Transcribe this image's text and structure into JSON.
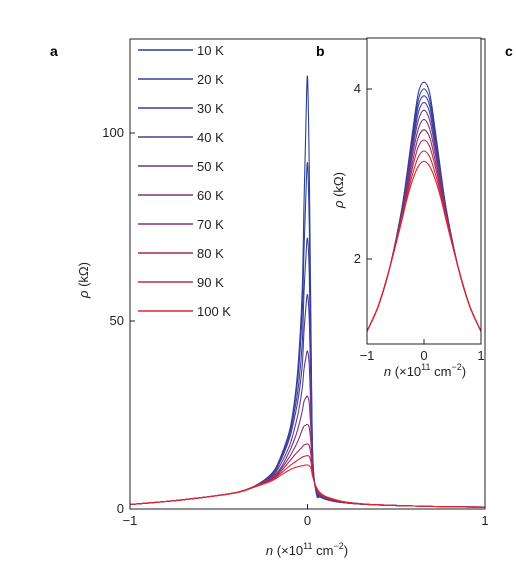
{
  "panels": {
    "a": "a",
    "b": "b",
    "c": "c"
  },
  "chart_data": [
    {
      "panel": "a",
      "type": "line",
      "title": "",
      "xlabel": "n (×10¹¹ cm⁻²)",
      "xlabel_parts": {
        "var": "n",
        "open": " (×10",
        "exp1": "11",
        "mid": " cm",
        "exp2": "−2",
        "close": ")"
      },
      "ylabel": "ρ (kΩ)",
      "ylabel_parts": {
        "var": "ρ",
        "rest": " (kΩ)"
      },
      "xlim": [
        -1,
        1.0
      ],
      "ylim": [
        0,
        125
      ],
      "xticks": [
        -1,
        0,
        1
      ],
      "xtick_labels": [
        "−1",
        "0",
        "1"
      ],
      "yticks": [
        0,
        50,
        100
      ],
      "ytick_labels": [
        "0",
        "50",
        "100"
      ],
      "grid": false,
      "legend_position": "top-left",
      "x": [
        -1.0,
        -0.8,
        -0.6,
        -0.4,
        -0.3,
        -0.2,
        -0.15,
        -0.1,
        -0.07,
        -0.05,
        -0.03,
        -0.02,
        -0.01,
        0.0,
        0.01,
        0.02,
        0.03,
        0.05,
        0.07,
        0.1,
        0.15,
        0.2,
        0.3,
        0.4,
        0.6,
        0.8,
        1.0
      ],
      "series": [
        {
          "name": "10 K",
          "color": "#2b3f96",
          "values": [
            1.2,
            2.0,
            3.0,
            4.4,
            6.0,
            9.5,
            14.0,
            21.0,
            30.0,
            40.0,
            58.0,
            80.0,
            100.0,
            115.0,
            90.0,
            45.0,
            14.0,
            4.0,
            3.2,
            2.6,
            2.0,
            1.7,
            1.3,
            1.1,
            0.8,
            0.6,
            0.5
          ]
        },
        {
          "name": "20 K",
          "color": "#33409a",
          "values": [
            1.2,
            2.0,
            3.0,
            4.4,
            6.0,
            9.5,
            14.0,
            21.0,
            29.0,
            37.0,
            52.0,
            68.0,
            82.0,
            92.0,
            75.0,
            40.0,
            13.0,
            4.2,
            3.3,
            2.7,
            2.1,
            1.7,
            1.3,
            1.1,
            0.8,
            0.6,
            0.5
          ]
        },
        {
          "name": "30 K",
          "color": "#3c3f9a",
          "values": [
            1.2,
            2.0,
            3.0,
            4.4,
            6.0,
            9.3,
            13.5,
            20.0,
            27.0,
            33.0,
            44.0,
            57.0,
            66.0,
            72.0,
            62.0,
            34.0,
            12.0,
            4.4,
            3.4,
            2.7,
            2.1,
            1.7,
            1.3,
            1.1,
            0.8,
            0.6,
            0.5
          ]
        },
        {
          "name": "40 K",
          "color": "#4a3d97",
          "values": [
            1.2,
            2.0,
            3.0,
            4.4,
            6.0,
            9.0,
            13.0,
            19.0,
            25.0,
            30.0,
            38.0,
            47.0,
            53.0,
            57.0,
            50.0,
            30.0,
            11.0,
            4.6,
            3.5,
            2.8,
            2.1,
            1.7,
            1.3,
            1.1,
            0.8,
            0.6,
            0.5
          ]
        },
        {
          "name": "50 K",
          "color": "#5e3a8f",
          "values": [
            1.2,
            2.0,
            3.0,
            4.4,
            6.0,
            8.8,
            12.0,
            17.0,
            22.0,
            26.0,
            32.0,
            37.0,
            40.0,
            42.0,
            38.0,
            24.0,
            10.5,
            4.8,
            3.7,
            2.9,
            2.2,
            1.8,
            1.3,
            1.1,
            0.8,
            0.6,
            0.5
          ]
        },
        {
          "name": "60 K",
          "color": "#76367f",
          "values": [
            1.2,
            2.0,
            3.0,
            4.4,
            6.0,
            8.5,
            11.0,
            15.5,
            19.0,
            22.0,
            26.0,
            28.5,
            29.5,
            30.0,
            28.0,
            20.0,
            10.0,
            5.0,
            3.8,
            3.0,
            2.3,
            1.8,
            1.3,
            1.1,
            0.8,
            0.6,
            0.5
          ]
        },
        {
          "name": "70 K",
          "color": "#8e2f6e",
          "values": [
            1.2,
            2.0,
            3.0,
            4.4,
            6.0,
            8.2,
            10.5,
            14.0,
            16.5,
            18.5,
            21.0,
            22.0,
            22.3,
            22.5,
            21.5,
            17.0,
            9.5,
            5.2,
            3.9,
            3.1,
            2.3,
            1.8,
            1.3,
            1.1,
            0.8,
            0.6,
            0.5
          ]
        },
        {
          "name": "80 K",
          "color": "#a92a57",
          "values": [
            1.2,
            2.0,
            3.0,
            4.4,
            6.0,
            8.0,
            10.0,
            12.8,
            14.5,
            15.5,
            16.5,
            17.0,
            17.2,
            17.3,
            16.8,
            14.0,
            9.0,
            5.4,
            4.0,
            3.2,
            2.4,
            1.9,
            1.4,
            1.1,
            0.8,
            0.6,
            0.5
          ]
        },
        {
          "name": "90 K",
          "color": "#c42942",
          "values": [
            1.2,
            2.0,
            3.0,
            4.4,
            5.9,
            7.8,
            9.5,
            11.5,
            12.5,
            13.2,
            13.8,
            14.0,
            14.1,
            14.2,
            13.9,
            12.3,
            8.8,
            5.6,
            4.2,
            3.3,
            2.5,
            1.9,
            1.4,
            1.1,
            0.8,
            0.6,
            0.5
          ]
        },
        {
          "name": "100 K",
          "color": "#e0262e",
          "values": [
            1.2,
            2.0,
            3.0,
            4.3,
            5.8,
            7.5,
            9.0,
            10.4,
            11.0,
            11.3,
            11.5,
            11.6,
            11.7,
            11.7,
            11.5,
            10.8,
            8.5,
            5.8,
            4.4,
            3.4,
            2.6,
            2.0,
            1.4,
            1.1,
            0.8,
            0.6,
            0.5
          ]
        }
      ]
    },
    {
      "panel": "b",
      "type": "line",
      "title": "",
      "xlabel": "n (×10¹¹ cm⁻²)",
      "xlabel_parts": {
        "var": "n",
        "open": " (×10",
        "exp1": "11",
        "mid": " cm",
        "exp2": "−2",
        "close": ")"
      },
      "ylabel": "ρ (kΩ)",
      "ylabel_parts": {
        "var": "ρ",
        "rest": " (kΩ)"
      },
      "xlim": [
        -1,
        1
      ],
      "ylim": [
        1,
        4.6
      ],
      "xticks": [
        -1,
        0,
        1
      ],
      "xtick_labels": [
        "−1",
        "0",
        "1"
      ],
      "yticks": [
        2,
        4
      ],
      "ytick_labels": [
        "2",
        "4"
      ],
      "grid": false,
      "x": [
        -1.0,
        -0.8,
        -0.6,
        -0.4,
        -0.3,
        -0.2,
        -0.1,
        0.0,
        0.1,
        0.2,
        0.3,
        0.4,
        0.6,
        0.8,
        1.0
      ],
      "series": [
        {
          "color": "#2b3f96",
          "values": [
            1.15,
            1.45,
            1.9,
            2.55,
            3.0,
            3.5,
            3.95,
            4.08,
            3.95,
            3.5,
            3.0,
            2.55,
            1.9,
            1.45,
            1.15
          ]
        },
        {
          "color": "#33409a",
          "values": [
            1.15,
            1.45,
            1.9,
            2.55,
            2.98,
            3.45,
            3.87,
            4.0,
            3.87,
            3.45,
            2.98,
            2.55,
            1.9,
            1.45,
            1.15
          ]
        },
        {
          "color": "#3c3f9a",
          "values": [
            1.15,
            1.45,
            1.9,
            2.54,
            2.95,
            3.4,
            3.8,
            3.92,
            3.8,
            3.4,
            2.95,
            2.54,
            1.9,
            1.45,
            1.15
          ]
        },
        {
          "color": "#4a3d97",
          "values": [
            1.15,
            1.45,
            1.9,
            2.53,
            2.92,
            3.35,
            3.72,
            3.84,
            3.72,
            3.35,
            2.92,
            2.53,
            1.9,
            1.45,
            1.15
          ]
        },
        {
          "color": "#5e3a8f",
          "values": [
            1.15,
            1.45,
            1.9,
            2.52,
            2.9,
            3.3,
            3.63,
            3.75,
            3.63,
            3.3,
            2.9,
            2.52,
            1.9,
            1.45,
            1.15
          ]
        },
        {
          "color": "#76367f",
          "values": [
            1.15,
            1.45,
            1.9,
            2.5,
            2.86,
            3.23,
            3.53,
            3.64,
            3.53,
            3.23,
            2.86,
            2.5,
            1.9,
            1.45,
            1.15
          ]
        },
        {
          "color": "#8e2f6e",
          "values": [
            1.15,
            1.45,
            1.9,
            2.48,
            2.82,
            3.15,
            3.43,
            3.52,
            3.43,
            3.15,
            2.82,
            2.48,
            1.9,
            1.45,
            1.15
          ]
        },
        {
          "color": "#a92a57",
          "values": [
            1.15,
            1.45,
            1.9,
            2.46,
            2.78,
            3.08,
            3.32,
            3.4,
            3.32,
            3.08,
            2.78,
            2.46,
            1.9,
            1.45,
            1.15
          ]
        },
        {
          "color": "#c42942",
          "values": [
            1.15,
            1.45,
            1.9,
            2.44,
            2.74,
            3.0,
            3.2,
            3.27,
            3.2,
            3.0,
            2.74,
            2.44,
            1.9,
            1.45,
            1.15
          ]
        },
        {
          "color": "#e0262e",
          "values": [
            1.15,
            1.45,
            1.9,
            2.42,
            2.7,
            2.93,
            3.09,
            3.15,
            3.09,
            2.93,
            2.7,
            2.42,
            1.9,
            1.45,
            1.15
          ]
        }
      ]
    }
  ]
}
